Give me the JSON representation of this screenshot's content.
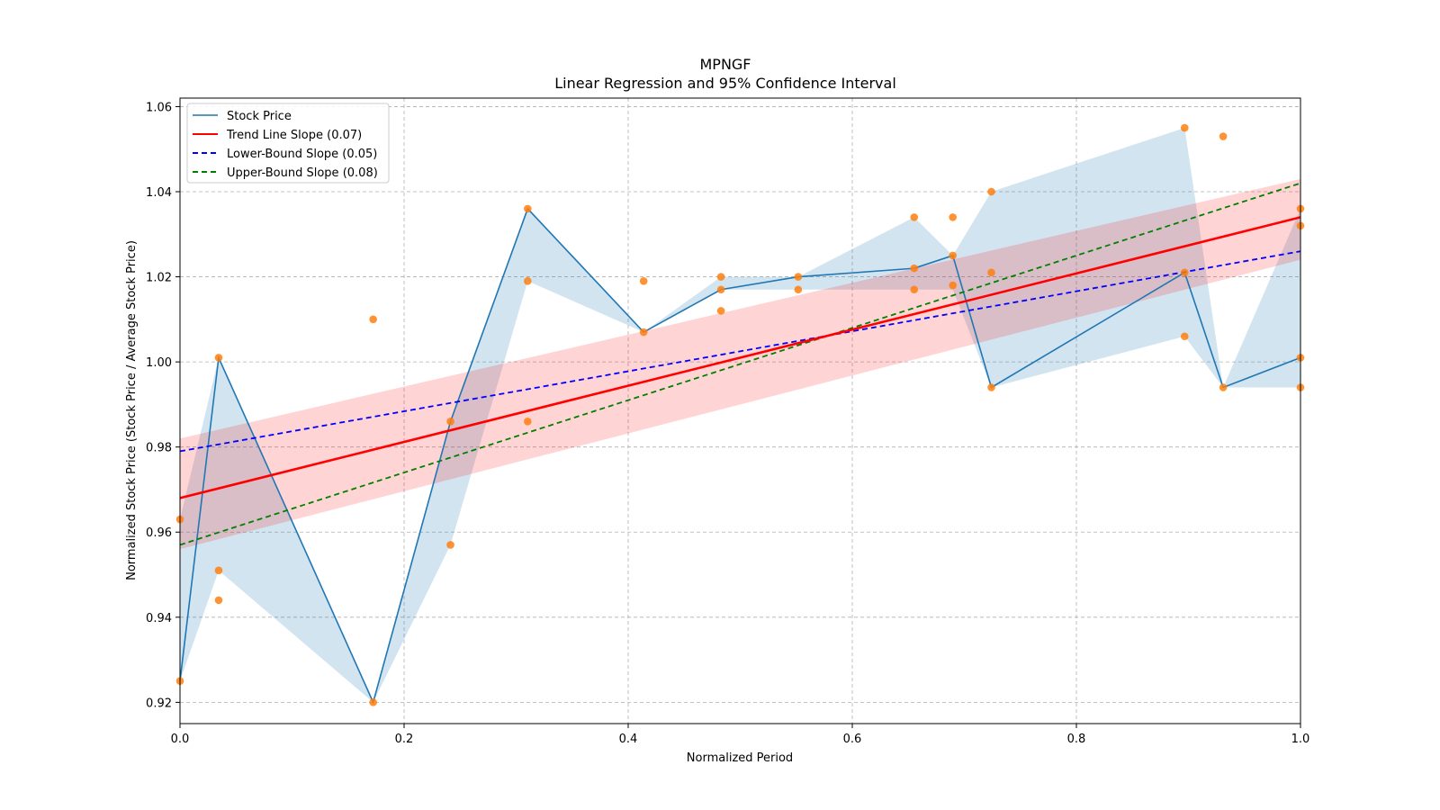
{
  "chart_data": {
    "type": "line",
    "title": "MPNGF",
    "subtitle": "Linear Regression and 95% Confidence Interval",
    "xlabel": "Normalized Period",
    "ylabel": "Normalized Stock Price (Stock Price / Average Stock Price)",
    "xlim": [
      0.0,
      1.0
    ],
    "ylim": [
      0.915,
      1.062
    ],
    "xticks": [
      0.0,
      0.2,
      0.4,
      0.6,
      0.8,
      1.0
    ],
    "xtick_labels": [
      "0.0",
      "0.2",
      "0.4",
      "0.6",
      "0.8",
      "1.0"
    ],
    "yticks": [
      0.92,
      0.94,
      0.96,
      0.98,
      1.0,
      1.02,
      1.04,
      1.06
    ],
    "ytick_labels": [
      "0.92",
      "0.94",
      "0.96",
      "0.98",
      "1.00",
      "1.02",
      "1.04",
      "1.06"
    ],
    "grid": true,
    "legend_position": "top-left",
    "legend": [
      {
        "label": "Stock Price",
        "color": "#1f77b4",
        "style": "solid"
      },
      {
        "label": "Trend Line Slope (0.07)",
        "color": "#ff0000",
        "style": "solid"
      },
      {
        "label": "Lower-Bound Slope (0.05)",
        "color": "#0000ff",
        "style": "dashed"
      },
      {
        "label": "Upper-Bound Slope (0.08)",
        "color": "#008000",
        "style": "dashed"
      }
    ],
    "stock_price": {
      "name": "Stock Price",
      "color": "#1f77b4",
      "x": [
        0.0,
        0.0345,
        0.1724,
        0.2414,
        0.3103,
        0.4138,
        0.4828,
        0.5517,
        0.6552,
        0.6897,
        0.7241,
        0.8966,
        0.931,
        1.0
      ],
      "y": [
        0.925,
        1.001,
        0.92,
        0.986,
        1.036,
        1.007,
        1.017,
        1.02,
        1.022,
        1.025,
        0.994,
        1.021,
        0.994,
        1.001
      ],
      "band_low": [
        0.925,
        0.951,
        0.92,
        0.957,
        1.019,
        1.007,
        1.017,
        1.017,
        1.017,
        1.017,
        0.994,
        1.006,
        0.994,
        0.994
      ],
      "band_high": [
        0.963,
        1.001,
        0.92,
        0.986,
        1.036,
        1.007,
        1.02,
        1.02,
        1.034,
        1.025,
        1.04,
        1.055,
        0.994,
        1.036
      ],
      "band_color": "#1f77b4"
    },
    "scatter": {
      "color": "#ff7f0e",
      "points": [
        [
          0.0,
          0.925
        ],
        [
          0.0,
          0.963
        ],
        [
          0.0345,
          1.001
        ],
        [
          0.0345,
          0.951
        ],
        [
          0.0345,
          0.944
        ],
        [
          0.1724,
          0.92
        ],
        [
          0.1724,
          1.01
        ],
        [
          0.2414,
          0.986
        ],
        [
          0.2414,
          0.957
        ],
        [
          0.3103,
          1.036
        ],
        [
          0.3103,
          1.019
        ],
        [
          0.3103,
          0.986
        ],
        [
          0.4138,
          1.007
        ],
        [
          0.4138,
          1.019
        ],
        [
          0.4828,
          1.017
        ],
        [
          0.4828,
          1.02
        ],
        [
          0.4828,
          1.012
        ],
        [
          0.5517,
          1.02
        ],
        [
          0.5517,
          1.017
        ],
        [
          0.6552,
          1.022
        ],
        [
          0.6552,
          1.034
        ],
        [
          0.6552,
          1.017
        ],
        [
          0.6897,
          1.025
        ],
        [
          0.6897,
          1.034
        ],
        [
          0.6897,
          1.018
        ],
        [
          0.7241,
          0.994
        ],
        [
          0.7241,
          1.04
        ],
        [
          0.7241,
          1.021
        ],
        [
          0.8966,
          1.021
        ],
        [
          0.8966,
          1.055
        ],
        [
          0.8966,
          1.006
        ],
        [
          0.931,
          0.994
        ],
        [
          0.931,
          1.053
        ],
        [
          1.0,
          1.001
        ],
        [
          1.0,
          1.036
        ],
        [
          1.0,
          1.032
        ],
        [
          1.0,
          0.994
        ]
      ]
    },
    "trend_line": {
      "label": "Trend Line Slope (0.07)",
      "slope": 0.07,
      "y_start": 0.968,
      "y_end": 1.034,
      "color": "#ff0000"
    },
    "confidence_band": {
      "low_start": 0.956,
      "low_end": 1.024,
      "high_start": 0.982,
      "high_end": 1.043,
      "color": "#ff0000"
    },
    "lower_bound": {
      "label": "Lower-Bound Slope (0.05)",
      "slope": 0.05,
      "y_start": 0.979,
      "y_end": 1.026,
      "color": "#0000ff"
    },
    "upper_bound": {
      "label": "Upper-Bound Slope (0.08)",
      "slope": 0.08,
      "y_start": 0.957,
      "y_end": 1.042,
      "color": "#008000"
    }
  }
}
